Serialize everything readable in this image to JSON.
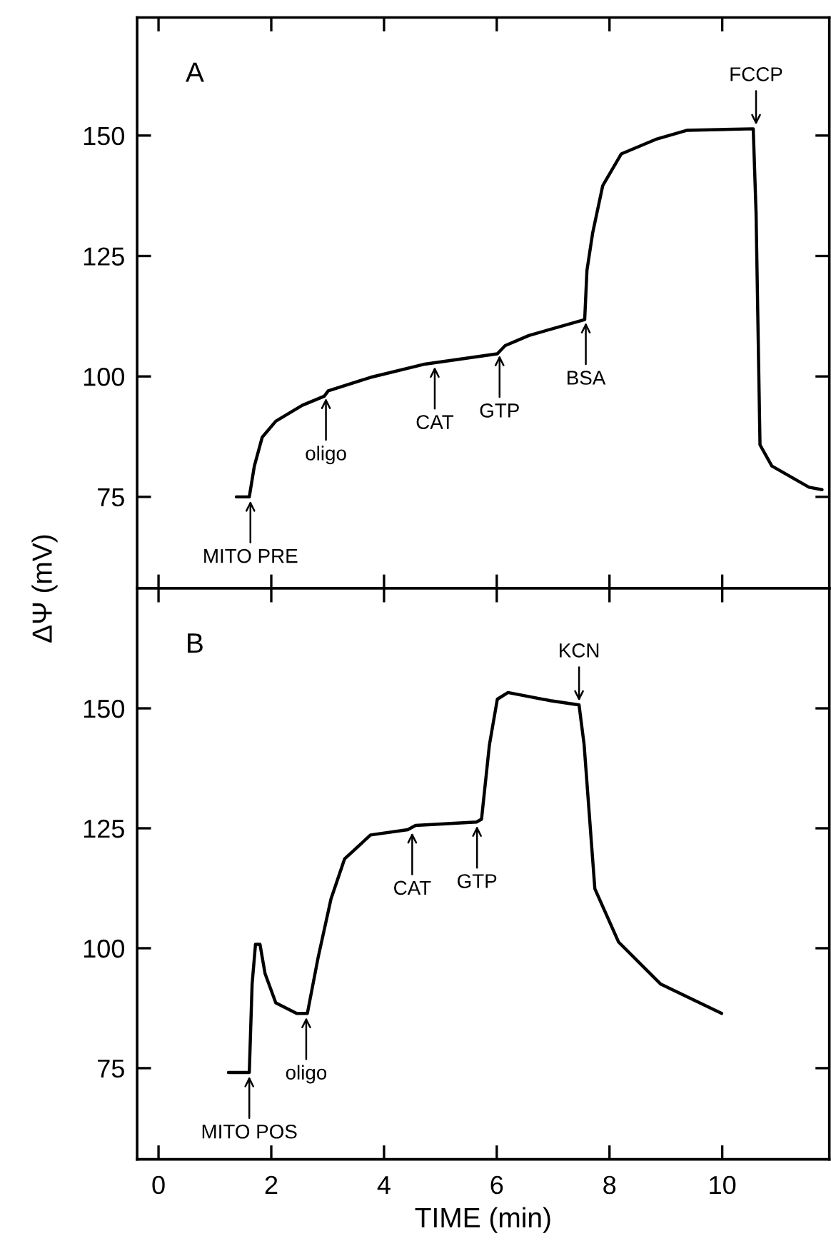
{
  "chart_data": [
    {
      "type": "line",
      "ylabel": "ΔΨ (mV)",
      "xlim": [
        -0.38,
        11.9
      ],
      "ylim": [
        56,
        174.5
      ],
      "xticks": [
        {
          "value": 0,
          "label": null
        },
        {
          "value": 2,
          "label": null
        },
        {
          "value": 4,
          "label": null
        },
        {
          "value": 6,
          "label": null
        },
        {
          "value": 8,
          "label": null
        },
        {
          "value": 10,
          "label": null
        }
      ],
      "yticks": [
        75,
        100,
        125,
        150
      ],
      "tick_labels": "y",
      "grid": false,
      "series": [
        {
          "color": "#000000",
          "x": [
            1.38,
            1.61,
            1.7,
            1.84,
            2.08,
            2.55,
            2.94,
            3.01,
            3.76,
            4.7,
            6.01,
            6.15,
            6.57,
            7.56,
            7.6,
            7.7,
            7.88,
            8.21,
            8.82,
            9.38,
            10.55,
            10.6,
            10.67,
            10.88,
            11.54,
            11.77
          ],
          "values": [
            75,
            75,
            81.4,
            87.4,
            90.7,
            94.0,
            95.9,
            97.0,
            99.8,
            102.5,
            104.7,
            106.4,
            108.5,
            111.8,
            122,
            129.7,
            139.6,
            146.2,
            149.2,
            151.1,
            151.4,
            134,
            85.8,
            81.4,
            77.0,
            76.5
          ]
        }
      ],
      "annotations": [
        "A",
        {
          "text": "MITO PRE",
          "x": 1.63,
          "y": 75
        },
        {
          "text": "oligo",
          "x": 2.97,
          "y": 96.3
        },
        {
          "text": "CAT",
          "x": 4.9,
          "y": 102.8
        },
        {
          "text": "GTP",
          "x": 6.05,
          "y": 105.2
        },
        {
          "text": "BSA",
          "x": 7.58,
          "y": 112
        },
        {
          "text": "FCCP",
          "x": 10.6,
          "y": 151.4
        }
      ]
    },
    {
      "type": "line",
      "xlabel": "TIME (min)",
      "xlim": [
        -0.38,
        11.9
      ],
      "ylim": [
        56,
        175
      ],
      "xticks": [
        0,
        2,
        4,
        6,
        8,
        10
      ],
      "yticks": [
        75,
        100,
        125,
        150
      ],
      "grid": false,
      "series": [
        {
          "color": "#000000",
          "x": [
            1.24,
            1.61,
            1.66,
            1.72,
            1.8,
            1.89,
            2.08,
            2.45,
            2.64,
            2.83,
            3.06,
            3.3,
            3.76,
            4.42,
            4.56,
            5.64,
            5.73,
            5.87,
            6.01,
            6.2,
            6.95,
            7.46,
            7.55,
            7.74,
            8.16,
            8.91,
            9.99
          ],
          "values": [
            74.1,
            74.1,
            92.5,
            100.8,
            100.8,
            94.7,
            88.6,
            86.4,
            86.4,
            98.0,
            110.3,
            118.6,
            123.6,
            124.7,
            125.6,
            126.3,
            126.9,
            142.4,
            151.9,
            153.3,
            151.6,
            150.7,
            142.4,
            112.4,
            101.3,
            92.5,
            86.4
          ]
        }
      ],
      "annotations": [
        "B",
        {
          "text": "MITO POS",
          "x": 1.61,
          "y": 74.1
        },
        {
          "text": "oligo",
          "x": 2.62,
          "y": 86.4
        },
        {
          "text": "CAT",
          "x": 4.5,
          "y": 124.9
        },
        {
          "text": "GTP",
          "x": 5.65,
          "y": 126.3
        },
        {
          "text": "KCN",
          "x": 7.46,
          "y": 150.7
        }
      ]
    }
  ]
}
